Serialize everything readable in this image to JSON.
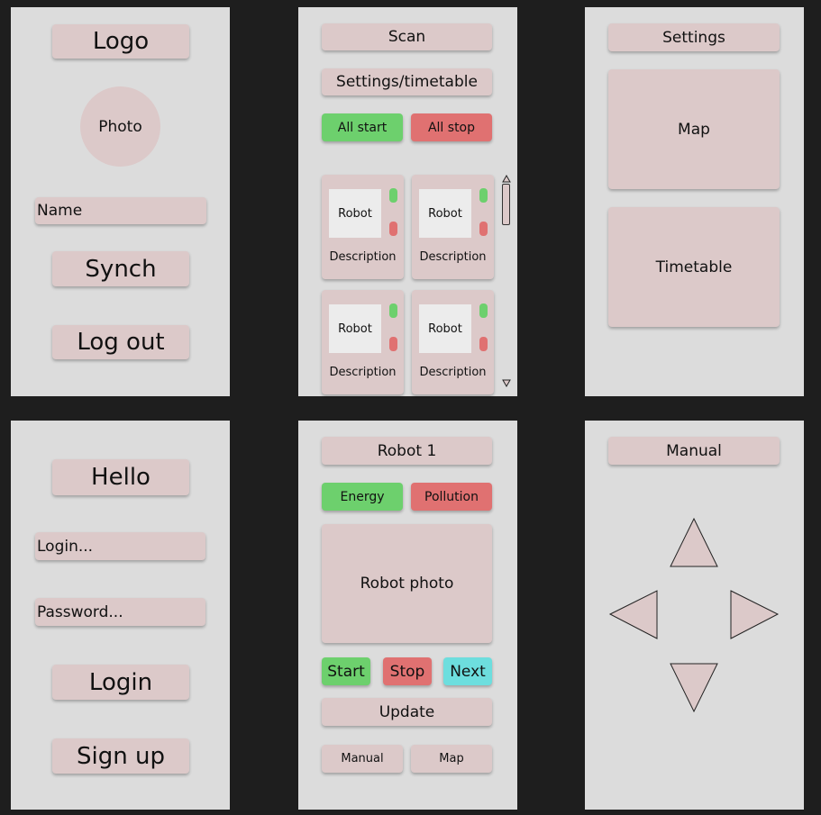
{
  "profile": {
    "logo_label": "Logo",
    "photo_label": "Photo",
    "name_label": "Name",
    "synch_label": "Synch",
    "logout_label": "Log out"
  },
  "scan": {
    "scan_label": "Scan",
    "settings_timetable_label": "Settings/timetable",
    "all_start_label": "All start",
    "all_stop_label": "All stop",
    "cards": [
      {
        "robot": "Robot",
        "description": "Description"
      },
      {
        "robot": "Robot",
        "description": "Description"
      },
      {
        "robot": "Robot",
        "description": "Description"
      },
      {
        "robot": "Robot",
        "description": "Description"
      }
    ]
  },
  "settings": {
    "title": "Settings",
    "map_label": "Map",
    "timetable_label": "Timetable"
  },
  "login": {
    "hello_label": "Hello",
    "login_placeholder": "Login...",
    "password_placeholder": "Password...",
    "login_button": "Login",
    "signup_button": "Sign up"
  },
  "robot_detail": {
    "title": "Robot 1",
    "energy_label": "Energy",
    "pollution_label": "Pollution",
    "photo_label": "Robot photo",
    "start_label": "Start",
    "stop_label": "Stop",
    "next_label": "Next",
    "update_label": "Update",
    "manual_label": "Manual",
    "map_label": "Map"
  },
  "manual": {
    "title": "Manual",
    "arrows": [
      "up-arrow-icon",
      "left-arrow-icon",
      "right-arrow-icon",
      "down-arrow-icon"
    ]
  },
  "colors": {
    "background": "#1e1e1e",
    "frame": "#dcdcdc",
    "element": "#dcc9c9",
    "green": "#6dd06d",
    "red": "#e07171",
    "cyan": "#6ddede"
  }
}
